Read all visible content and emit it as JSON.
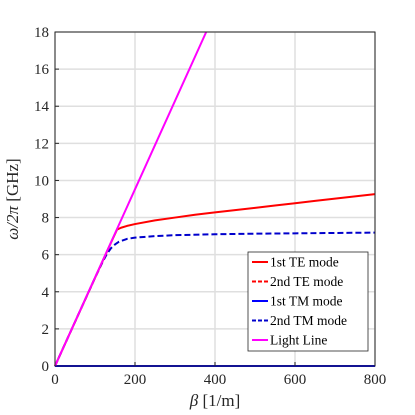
{
  "chart_data": {
    "type": "line",
    "xlabel_symbol": "β",
    "xlabel_unit": " [1/m]",
    "ylabel_symbol": "ω/2π",
    "ylabel_unit": " [GHz]",
    "xlim": [
      0,
      800
    ],
    "ylim": [
      0,
      18
    ],
    "xticks": [
      "0",
      "200",
      "400",
      "600",
      "800"
    ],
    "yticks": [
      "0",
      "2",
      "4",
      "6",
      "8",
      "10",
      "12",
      "14",
      "16",
      "18"
    ],
    "grid": true,
    "legend_position": "bottom-right",
    "series": [
      {
        "name": "1st TE mode",
        "color": "#ff0000",
        "dash": "solid",
        "x": [
          0,
          20,
          40,
          60,
          80,
          100,
          120,
          140,
          155,
          165,
          180,
          200,
          250,
          300,
          350,
          400,
          450,
          500,
          550,
          600,
          650,
          700,
          750,
          800
        ],
        "y": [
          0,
          0.95,
          1.9,
          2.85,
          3.8,
          4.75,
          5.7,
          6.65,
          7.35,
          7.45,
          7.55,
          7.65,
          7.85,
          8.0,
          8.15,
          8.28,
          8.4,
          8.52,
          8.65,
          8.77,
          8.9,
          9.02,
          9.14,
          9.26
        ]
      },
      {
        "name": "2nd TE mode",
        "color": "#ff0000",
        "dash": "dashed",
        "x": [],
        "y": []
      },
      {
        "name": "1st TM mode",
        "color": "#0000ff",
        "dash": "solid",
        "x": [
          0,
          800
        ],
        "y": [
          0,
          0
        ]
      },
      {
        "name": "2nd TM mode",
        "color": "#0000cc",
        "dash": "dashed",
        "x": [
          0,
          20,
          40,
          60,
          80,
          100,
          110,
          120,
          130,
          140,
          150,
          160,
          180,
          200,
          250,
          300,
          400,
          500,
          600,
          700,
          800
        ],
        "y": [
          0,
          0.95,
          1.9,
          2.85,
          3.8,
          4.75,
          5.2,
          5.65,
          6.05,
          6.35,
          6.55,
          6.7,
          6.85,
          6.92,
          7.0,
          7.05,
          7.1,
          7.13,
          7.15,
          7.17,
          7.19
        ]
      },
      {
        "name": "Light Line",
        "color": "#ff00ff",
        "dash": "solid",
        "x": [
          0,
          378
        ],
        "y": [
          0,
          18
        ]
      }
    ]
  }
}
